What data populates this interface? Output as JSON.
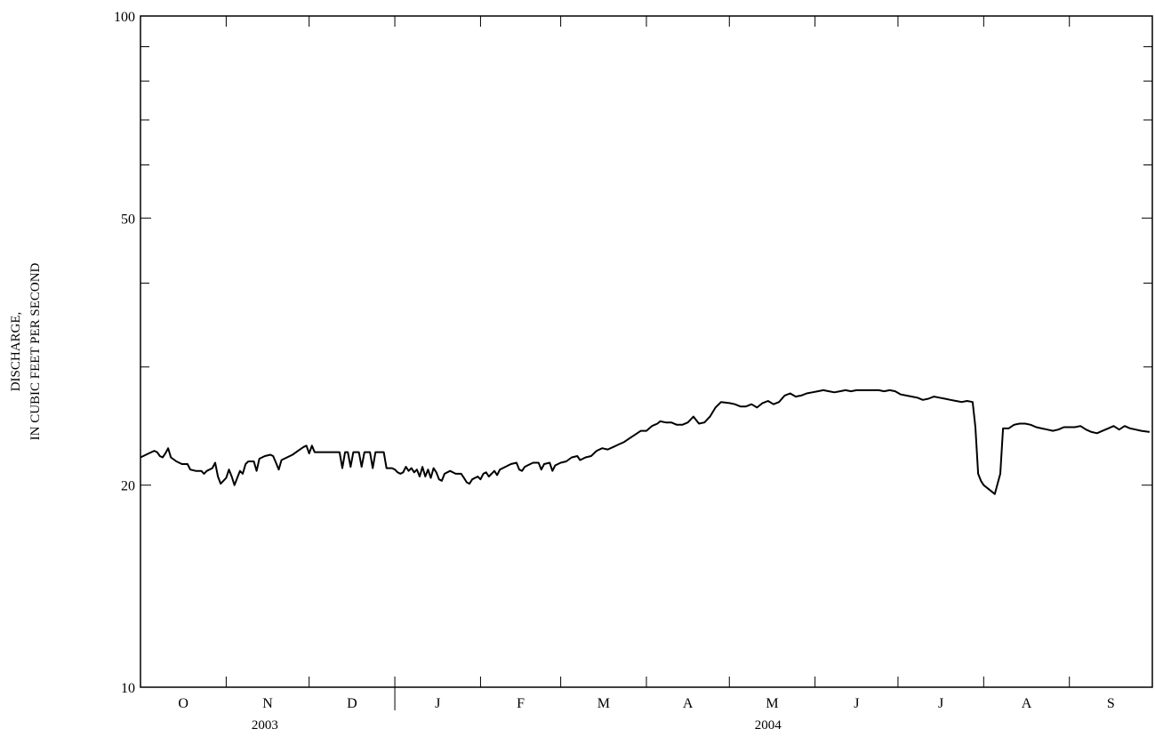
{
  "chart_data": {
    "type": "line",
    "title": "",
    "xlabel": "",
    "ylabel_lines": [
      "DISCHARGE,",
      "IN CUBIC FEET PER SECOND"
    ],
    "y_scale": "log",
    "ylim": [
      10,
      100
    ],
    "y_tick_labels": [
      {
        "value": 100,
        "label": "100"
      },
      {
        "value": 50,
        "label": "50"
      },
      {
        "value": 20,
        "label": "20"
      },
      {
        "value": 10,
        "label": "10"
      }
    ],
    "y_minor_ticks": [
      30,
      40,
      60,
      70,
      80,
      90
    ],
    "x_start_date": "2003-10-01",
    "x_end_date": "2004-09-30",
    "months": [
      {
        "label": "O",
        "start": "2003-10-01"
      },
      {
        "label": "N",
        "start": "2003-11-01"
      },
      {
        "label": "D",
        "start": "2003-12-01"
      },
      {
        "label": "J",
        "start": "2004-01-01"
      },
      {
        "label": "F",
        "start": "2004-02-01"
      },
      {
        "label": "M",
        "start": "2004-03-01"
      },
      {
        "label": "A",
        "start": "2004-04-01"
      },
      {
        "label": "M",
        "start": "2004-05-01"
      },
      {
        "label": "J",
        "start": "2004-06-01"
      },
      {
        "label": "J",
        "start": "2004-07-01"
      },
      {
        "label": "A",
        "start": "2004-08-01"
      },
      {
        "label": "S",
        "start": "2004-09-01"
      }
    ],
    "years": [
      {
        "label": "2003",
        "center": "2003-11-15"
      },
      {
        "label": "2004",
        "center": "2004-05-15"
      }
    ],
    "year_divider": "2004-01-01",
    "series": [
      {
        "color": "#000000",
        "points": [
          [
            "2003-10-01",
            22.0
          ],
          [
            "2003-10-04",
            22.3
          ],
          [
            "2003-10-06",
            22.5
          ],
          [
            "2003-10-07",
            22.4
          ],
          [
            "2003-10-08",
            22.1
          ],
          [
            "2003-10-09",
            22.0
          ],
          [
            "2003-10-10",
            22.3
          ],
          [
            "2003-10-11",
            22.7
          ],
          [
            "2003-10-12",
            22.0
          ],
          [
            "2003-10-14",
            21.7
          ],
          [
            "2003-10-16",
            21.5
          ],
          [
            "2003-10-18",
            21.5
          ],
          [
            "2003-10-19",
            21.1
          ],
          [
            "2003-10-21",
            21.0
          ],
          [
            "2003-10-23",
            21.0
          ],
          [
            "2003-10-24",
            20.8
          ],
          [
            "2003-10-25",
            21.0
          ],
          [
            "2003-10-27",
            21.2
          ],
          [
            "2003-10-28",
            21.6
          ],
          [
            "2003-10-29",
            20.6
          ],
          [
            "2003-10-30",
            20.1
          ],
          [
            "2003-11-01",
            20.5
          ],
          [
            "2003-11-02",
            21.1
          ],
          [
            "2003-11-03",
            20.6
          ],
          [
            "2003-11-04",
            20.0
          ],
          [
            "2003-11-05",
            20.5
          ],
          [
            "2003-11-06",
            21.0
          ],
          [
            "2003-11-07",
            20.8
          ],
          [
            "2003-11-08",
            21.5
          ],
          [
            "2003-11-09",
            21.7
          ],
          [
            "2003-11-11",
            21.7
          ],
          [
            "2003-11-12",
            21.0
          ],
          [
            "2003-11-13",
            21.9
          ],
          [
            "2003-11-15",
            22.1
          ],
          [
            "2003-11-17",
            22.2
          ],
          [
            "2003-11-18",
            22.1
          ],
          [
            "2003-11-19",
            21.6
          ],
          [
            "2003-11-20",
            21.1
          ],
          [
            "2003-11-21",
            21.8
          ],
          [
            "2003-11-23",
            22.0
          ],
          [
            "2003-11-25",
            22.2
          ],
          [
            "2003-11-27",
            22.5
          ],
          [
            "2003-11-29",
            22.8
          ],
          [
            "2003-11-30",
            22.9
          ],
          [
            "2003-12-01",
            22.3
          ],
          [
            "2003-12-02",
            22.9
          ],
          [
            "2003-12-03",
            22.4
          ],
          [
            "2003-12-06",
            22.4
          ],
          [
            "2003-12-10",
            22.4
          ],
          [
            "2003-12-12",
            22.4
          ],
          [
            "2003-12-13",
            21.2
          ],
          [
            "2003-12-14",
            22.4
          ],
          [
            "2003-12-15",
            22.4
          ],
          [
            "2003-12-16",
            21.3
          ],
          [
            "2003-12-17",
            22.4
          ],
          [
            "2003-12-19",
            22.4
          ],
          [
            "2003-12-20",
            21.3
          ],
          [
            "2003-12-21",
            22.4
          ],
          [
            "2003-12-22",
            22.4
          ],
          [
            "2003-12-23",
            22.4
          ],
          [
            "2003-12-24",
            21.2
          ],
          [
            "2003-12-25",
            22.4
          ],
          [
            "2003-12-26",
            22.4
          ],
          [
            "2003-12-27",
            22.4
          ],
          [
            "2003-12-28",
            22.4
          ],
          [
            "2003-12-29",
            21.2
          ],
          [
            "2003-12-31",
            21.2
          ],
          [
            "2004-01-01",
            21.1
          ],
          [
            "2004-01-02",
            20.9
          ],
          [
            "2004-01-03",
            20.8
          ],
          [
            "2004-01-04",
            20.9
          ],
          [
            "2004-01-05",
            21.3
          ],
          [
            "2004-01-06",
            21.0
          ],
          [
            "2004-01-07",
            21.2
          ],
          [
            "2004-01-08",
            20.9
          ],
          [
            "2004-01-09",
            21.1
          ],
          [
            "2004-01-10",
            20.6
          ],
          [
            "2004-01-11",
            21.3
          ],
          [
            "2004-01-12",
            20.6
          ],
          [
            "2004-01-13",
            21.1
          ],
          [
            "2004-01-14",
            20.5
          ],
          [
            "2004-01-15",
            21.2
          ],
          [
            "2004-01-16",
            20.9
          ],
          [
            "2004-01-17",
            20.4
          ],
          [
            "2004-01-18",
            20.3
          ],
          [
            "2004-01-19",
            20.8
          ],
          [
            "2004-01-21",
            21.0
          ],
          [
            "2004-01-23",
            20.8
          ],
          [
            "2004-01-25",
            20.8
          ],
          [
            "2004-01-26",
            20.5
          ],
          [
            "2004-01-27",
            20.2
          ],
          [
            "2004-01-28",
            20.1
          ],
          [
            "2004-01-29",
            20.4
          ],
          [
            "2004-01-31",
            20.6
          ],
          [
            "2004-02-01",
            20.4
          ],
          [
            "2004-02-02",
            20.8
          ],
          [
            "2004-02-03",
            20.9
          ],
          [
            "2004-02-04",
            20.6
          ],
          [
            "2004-02-06",
            21.0
          ],
          [
            "2004-02-07",
            20.7
          ],
          [
            "2004-02-08",
            21.1
          ],
          [
            "2004-02-10",
            21.3
          ],
          [
            "2004-02-12",
            21.5
          ],
          [
            "2004-02-14",
            21.6
          ],
          [
            "2004-02-15",
            21.1
          ],
          [
            "2004-02-16",
            21.0
          ],
          [
            "2004-02-17",
            21.3
          ],
          [
            "2004-02-18",
            21.4
          ],
          [
            "2004-02-20",
            21.6
          ],
          [
            "2004-02-22",
            21.6
          ],
          [
            "2004-02-23",
            21.1
          ],
          [
            "2004-02-24",
            21.5
          ],
          [
            "2004-02-26",
            21.6
          ],
          [
            "2004-02-27",
            21.0
          ],
          [
            "2004-02-28",
            21.4
          ],
          [
            "2004-03-01",
            21.6
          ],
          [
            "2004-03-03",
            21.7
          ],
          [
            "2004-03-05",
            22.0
          ],
          [
            "2004-03-07",
            22.1
          ],
          [
            "2004-03-08",
            21.8
          ],
          [
            "2004-03-10",
            22.0
          ],
          [
            "2004-03-12",
            22.1
          ],
          [
            "2004-03-14",
            22.5
          ],
          [
            "2004-03-16",
            22.7
          ],
          [
            "2004-03-18",
            22.6
          ],
          [
            "2004-03-20",
            22.8
          ],
          [
            "2004-03-22",
            23.0
          ],
          [
            "2004-03-24",
            23.2
          ],
          [
            "2004-03-26",
            23.5
          ],
          [
            "2004-03-28",
            23.8
          ],
          [
            "2004-03-30",
            24.1
          ],
          [
            "2004-04-01",
            24.1
          ],
          [
            "2004-04-03",
            24.5
          ],
          [
            "2004-04-05",
            24.7
          ],
          [
            "2004-04-06",
            24.9
          ],
          [
            "2004-04-08",
            24.8
          ],
          [
            "2004-04-10",
            24.8
          ],
          [
            "2004-04-12",
            24.6
          ],
          [
            "2004-04-14",
            24.6
          ],
          [
            "2004-04-16",
            24.8
          ],
          [
            "2004-04-18",
            25.3
          ],
          [
            "2004-04-20",
            24.7
          ],
          [
            "2004-04-22",
            24.8
          ],
          [
            "2004-04-24",
            25.3
          ],
          [
            "2004-04-26",
            26.1
          ],
          [
            "2004-04-28",
            26.6
          ],
          [
            "2004-05-01",
            26.5
          ],
          [
            "2004-05-03",
            26.4
          ],
          [
            "2004-05-05",
            26.2
          ],
          [
            "2004-05-07",
            26.2
          ],
          [
            "2004-05-09",
            26.4
          ],
          [
            "2004-05-11",
            26.1
          ],
          [
            "2004-05-13",
            26.5
          ],
          [
            "2004-05-15",
            26.7
          ],
          [
            "2004-05-17",
            26.4
          ],
          [
            "2004-05-19",
            26.6
          ],
          [
            "2004-05-21",
            27.2
          ],
          [
            "2004-05-23",
            27.4
          ],
          [
            "2004-05-25",
            27.1
          ],
          [
            "2004-05-27",
            27.2
          ],
          [
            "2004-05-29",
            27.4
          ],
          [
            "2004-05-31",
            27.5
          ],
          [
            "2004-06-02",
            27.6
          ],
          [
            "2004-06-04",
            27.7
          ],
          [
            "2004-06-06",
            27.6
          ],
          [
            "2004-06-08",
            27.5
          ],
          [
            "2004-06-10",
            27.6
          ],
          [
            "2004-06-12",
            27.7
          ],
          [
            "2004-06-14",
            27.6
          ],
          [
            "2004-06-16",
            27.7
          ],
          [
            "2004-06-18",
            27.7
          ],
          [
            "2004-06-20",
            27.7
          ],
          [
            "2004-06-22",
            27.7
          ],
          [
            "2004-06-24",
            27.7
          ],
          [
            "2004-06-26",
            27.6
          ],
          [
            "2004-06-28",
            27.7
          ],
          [
            "2004-06-30",
            27.6
          ],
          [
            "2004-07-02",
            27.3
          ],
          [
            "2004-07-04",
            27.2
          ],
          [
            "2004-07-06",
            27.1
          ],
          [
            "2004-07-08",
            27.0
          ],
          [
            "2004-07-10",
            26.8
          ],
          [
            "2004-07-12",
            26.9
          ],
          [
            "2004-07-14",
            27.1
          ],
          [
            "2004-07-16",
            27.0
          ],
          [
            "2004-07-18",
            26.9
          ],
          [
            "2004-07-20",
            26.8
          ],
          [
            "2004-07-22",
            26.7
          ],
          [
            "2004-07-24",
            26.6
          ],
          [
            "2004-07-26",
            26.7
          ],
          [
            "2004-07-28",
            26.6
          ],
          [
            "2004-07-29",
            24.4
          ],
          [
            "2004-07-30",
            20.8
          ],
          [
            "2004-07-31",
            20.3
          ],
          [
            "2004-08-01",
            20.0
          ],
          [
            "2004-08-03",
            19.7
          ],
          [
            "2004-08-05",
            19.4
          ],
          [
            "2004-08-07",
            20.8
          ],
          [
            "2004-08-08",
            24.3
          ],
          [
            "2004-08-10",
            24.3
          ],
          [
            "2004-08-12",
            24.6
          ],
          [
            "2004-08-14",
            24.7
          ],
          [
            "2004-08-16",
            24.7
          ],
          [
            "2004-08-18",
            24.6
          ],
          [
            "2004-08-20",
            24.4
          ],
          [
            "2004-08-22",
            24.3
          ],
          [
            "2004-08-24",
            24.2
          ],
          [
            "2004-08-26",
            24.1
          ],
          [
            "2004-08-28",
            24.2
          ],
          [
            "2004-08-30",
            24.4
          ],
          [
            "2004-09-01",
            24.4
          ],
          [
            "2004-09-03",
            24.4
          ],
          [
            "2004-09-05",
            24.5
          ],
          [
            "2004-09-07",
            24.2
          ],
          [
            "2004-09-09",
            24.0
          ],
          [
            "2004-09-11",
            23.9
          ],
          [
            "2004-09-13",
            24.1
          ],
          [
            "2004-09-15",
            24.3
          ],
          [
            "2004-09-17",
            24.5
          ],
          [
            "2004-09-19",
            24.2
          ],
          [
            "2004-09-21",
            24.5
          ],
          [
            "2004-09-23",
            24.3
          ],
          [
            "2004-09-25",
            24.2
          ],
          [
            "2004-09-27",
            24.1
          ],
          [
            "2004-09-30",
            24.0
          ]
        ]
      }
    ]
  }
}
